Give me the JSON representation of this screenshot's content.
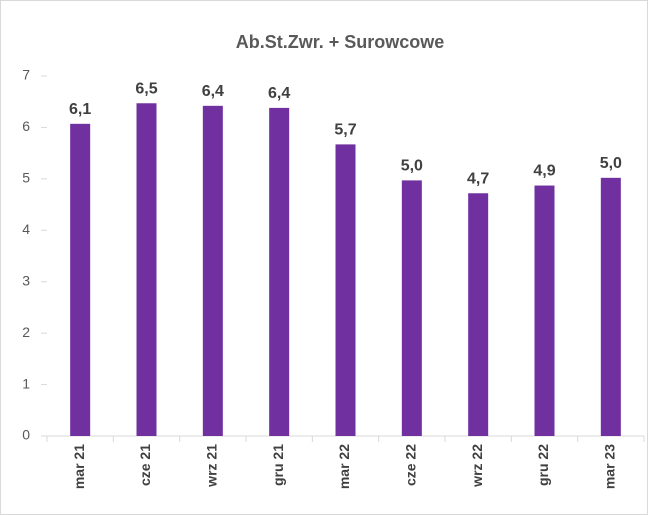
{
  "chart_data": {
    "type": "bar",
    "title": "Ab.St.Zwr. + Surowcowe",
    "categories": [
      "mar 21",
      "cze 21",
      "wrz 21",
      "gru 21",
      "mar 22",
      "cze 22",
      "wrz 22",
      "gru 22",
      "mar 23"
    ],
    "values": [
      6.07,
      6.47,
      6.42,
      6.38,
      5.67,
      4.97,
      4.72,
      4.87,
      5.02
    ],
    "value_labels": [
      "6,1",
      "6,5",
      "6,4",
      "6,4",
      "5,7",
      "5,0",
      "4,7",
      "4,9",
      "5,0"
    ],
    "color": "#7030a0",
    "ylim": [
      0,
      7
    ],
    "yticks": [
      0,
      1,
      2,
      3,
      4,
      5,
      6,
      7
    ],
    "grid": false
  }
}
